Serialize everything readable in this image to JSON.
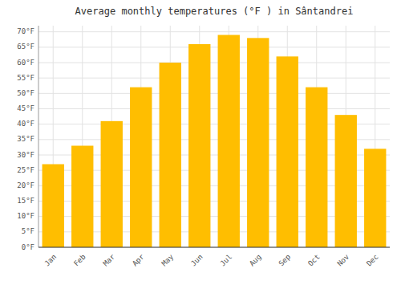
{
  "chart_data": {
    "type": "bar",
    "title": "Average monthly temperatures (°F ) in Sântandrei",
    "categories": [
      "Jan",
      "Feb",
      "Mar",
      "Apr",
      "May",
      "Jun",
      "Jul",
      "Aug",
      "Sep",
      "Oct",
      "Nov",
      "Dec"
    ],
    "values": [
      27,
      33,
      41,
      52,
      60,
      66,
      69,
      68,
      62,
      52,
      43,
      32
    ],
    "color": "#FFBE00",
    "ylim": [
      0,
      72
    ],
    "yticks": [
      {
        "value": 0,
        "label": "0°F"
      },
      {
        "value": 5,
        "label": "5°F"
      },
      {
        "value": 10,
        "label": "10°F"
      },
      {
        "value": 15,
        "label": "15°F"
      },
      {
        "value": 20,
        "label": "20°F"
      },
      {
        "value": 25,
        "label": "25°F"
      },
      {
        "value": 30,
        "label": "30°F"
      },
      {
        "value": 35,
        "label": "35°F"
      },
      {
        "value": 40,
        "label": "40°F"
      },
      {
        "value": 45,
        "label": "45°F"
      },
      {
        "value": 50,
        "label": "50°F"
      },
      {
        "value": 55,
        "label": "55°F"
      },
      {
        "value": 60,
        "label": "60°F"
      },
      {
        "value": 65,
        "label": "65°F"
      },
      {
        "value": 70,
        "label": "70°F"
      }
    ],
    "grid": true
  }
}
